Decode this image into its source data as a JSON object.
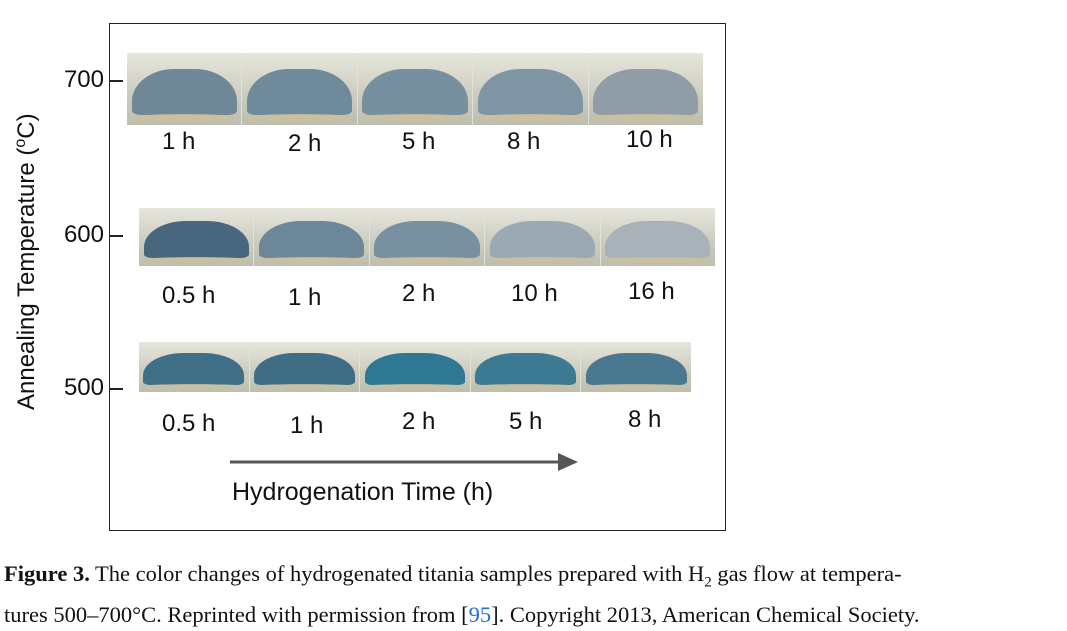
{
  "figure": {
    "y_axis_label": "Annealing Temperature (",
    "y_axis_label_deg": "o",
    "y_axis_label_end": "C)",
    "rows": [
      {
        "temperature": "700",
        "times": [
          "1 h",
          "2 h",
          "5 h",
          "8 h",
          "10 h"
        ],
        "colors": [
          "#6f8797",
          "#6f8a9a",
          "#7690a0",
          "#8095a3",
          "#909ca6"
        ]
      },
      {
        "temperature": "600",
        "times": [
          "0.5 h",
          "1 h",
          "2 h",
          "10 h",
          "16 h"
        ],
        "colors": [
          "#48667e",
          "#6c879a",
          "#7890a0",
          "#9aa9b3",
          "#a9b2b8"
        ]
      },
      {
        "temperature": "500",
        "times": [
          "0.5 h",
          "1 h",
          "2 h",
          "5 h",
          "8 h"
        ],
        "colors": [
          "#3f6f86",
          "#3f6d85",
          "#2f7893",
          "#3c7a94",
          "#4a7891"
        ]
      }
    ],
    "x_axis_label": "Hydrogenation Time (h)"
  },
  "caption": {
    "label": "Figure 3.",
    "text_1": " The color changes of hydrogenated titania samples prepared with H",
    "subscript": "2",
    "text_2": " gas flow at tempera-",
    "text_3": "tures 500–700°C. Reprinted with permission from [",
    "ref": "95",
    "text_4": "]. Copyright 2013, American Chemical Society."
  }
}
